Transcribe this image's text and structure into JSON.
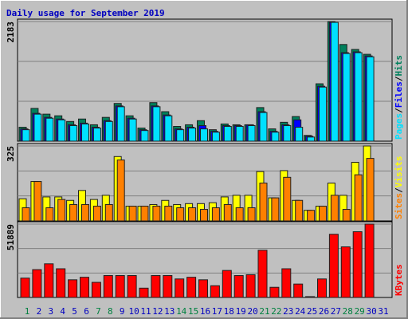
{
  "chart_data": [
    {
      "type": "bar",
      "title": "Daily usage for September 2019",
      "ylim": [
        0,
        2183
      ],
      "yticks": [
        2183
      ],
      "legend_separator": "/",
      "series": [
        {
          "name": "Hits",
          "color": "#00805c",
          "values": [
            254,
            598,
            493,
            463,
            359,
            404,
            299,
            434,
            688,
            463,
            239,
            703,
            538,
            269,
            299,
            374,
            209,
            314,
            299,
            299,
            613,
            224,
            344,
            449,
            105,
            1047,
            2183,
            1764,
            1674,
            1585,
            null
          ]
        },
        {
          "name": "Files",
          "color": "#0000ff",
          "values": [
            224,
            508,
            434,
            404,
            299,
            329,
            254,
            374,
            643,
            419,
            209,
            643,
            478,
            224,
            254,
            284,
            179,
            284,
            284,
            299,
            538,
            179,
            299,
            389,
            90,
            1002,
            2168,
            1615,
            1630,
            1555,
            null
          ]
        },
        {
          "name": "Pages",
          "color": "#00e0ff",
          "values": [
            209,
            493,
            419,
            389,
            284,
            314,
            239,
            359,
            628,
            404,
            194,
            628,
            463,
            209,
            239,
            224,
            164,
            269,
            269,
            284,
            523,
            164,
            284,
            254,
            75,
            987,
            2168,
            1600,
            1615,
            1540,
            null
          ]
        }
      ]
    },
    {
      "type": "bar",
      "ylim": [
        0,
        325
      ],
      "yticks": [
        325
      ],
      "legend_separator": "/",
      "series": [
        {
          "name": "Visits",
          "color": "#ffff00",
          "values": [
            96,
            171,
            104,
            104,
            89,
            132,
            93,
            111,
            279,
            64,
            64,
            71,
            89,
            71,
            75,
            75,
            79,
            104,
            111,
            111,
            214,
            100,
            218,
            89,
            46,
            64,
            164,
            111,
            254,
            325,
            null
          ]
        },
        {
          "name": "Sites",
          "color": "#ff8000",
          "values": [
            57,
            171,
            57,
            93,
            71,
            71,
            64,
            71,
            264,
            64,
            64,
            64,
            64,
            57,
            57,
            50,
            57,
            71,
            57,
            57,
            164,
            100,
            189,
            89,
            46,
            64,
            111,
            50,
            200,
            271,
            null
          ]
        }
      ]
    },
    {
      "type": "bar",
      "ylim": [
        0,
        51889
      ],
      "yticks": [
        51889
      ],
      "series": [
        {
          "name": "KBytes",
          "color": "#ff0000",
          "values": [
            13700,
            19700,
            23800,
            20300,
            12500,
            14300,
            10700,
            15500,
            15500,
            15500,
            6600,
            15500,
            15500,
            13100,
            14300,
            12500,
            8300,
            19100,
            15500,
            16100,
            33400,
            7200,
            20300,
            9500,
            600,
            13100,
            44700,
            35800,
            46500,
            51889,
            null
          ]
        }
      ],
      "categories": [
        "1",
        "2",
        "3",
        "4",
        "5",
        "6",
        "7",
        "8",
        "9",
        "10",
        "11",
        "12",
        "13",
        "14",
        "15",
        "16",
        "17",
        "18",
        "19",
        "20",
        "21",
        "22",
        "23",
        "24",
        "25",
        "26",
        "27",
        "28",
        "29",
        "30",
        "31"
      ],
      "category_colors": [
        "#008040",
        "#0000c0",
        "#0000c0",
        "#0000c0",
        "#0000c0",
        "#0000c0",
        "#008040",
        "#008040",
        "#0000c0",
        "#0000c0",
        "#0000c0",
        "#0000c0",
        "#0000c0",
        "#008040",
        "#008040",
        "#0000c0",
        "#0000c0",
        "#0000c0",
        "#0000c0",
        "#0000c0",
        "#008040",
        "#008040",
        "#0000c0",
        "#0000c0",
        "#0000c0",
        "#0000c0",
        "#0000c0",
        "#008040",
        "#008040",
        "#0000c0",
        "#0000c0"
      ]
    }
  ]
}
